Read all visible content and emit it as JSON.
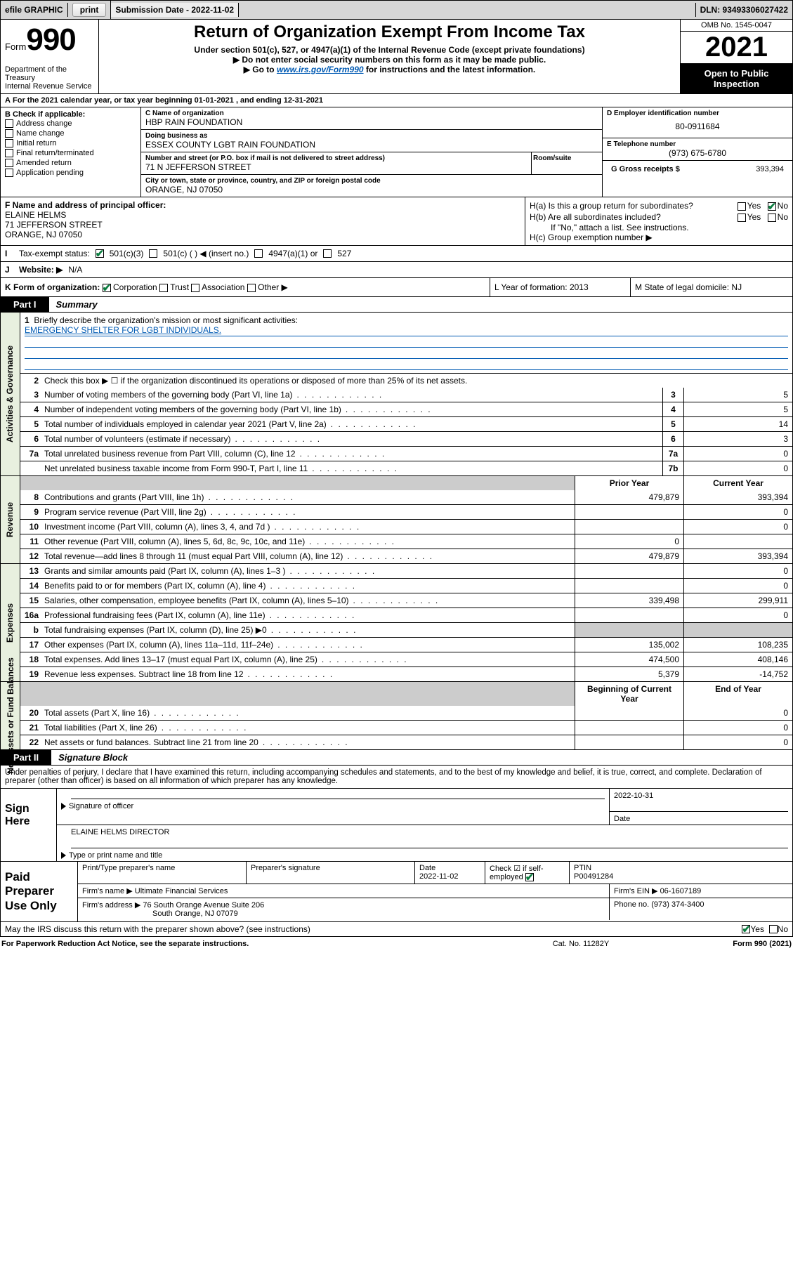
{
  "colors": {
    "topbar_bg": "#d6d6d6",
    "vtab_bg": "#e8f0df",
    "shade": "#cccccc",
    "link": "#005ab3",
    "check_green": "#0a7d3f",
    "black": "#000000"
  },
  "topbar": {
    "efile": "efile GRAPHIC",
    "print": "print",
    "sub_date_lbl": "Submission Date - 2022-11-02",
    "dln_lbl": "DLN: 93493306027422"
  },
  "header": {
    "form_word": "Form",
    "form_number": "990",
    "dept": "Department of the Treasury",
    "irs": "Internal Revenue Service",
    "title": "Return of Organization Exempt From Income Tax",
    "sub1": "Under section 501(c), 527, or 4947(a)(1) of the Internal Revenue Code (except private foundations)",
    "sub2": "▶ Do not enter social security numbers on this form as it may be made public.",
    "sub3_pre": "▶ Go to ",
    "sub3_link": "www.irs.gov/Form990",
    "sub3_post": " for instructions and the latest information.",
    "omb": "OMB No. 1545-0047",
    "year": "2021",
    "open": "Open to Public Inspection"
  },
  "A": {
    "text": "For the 2021 calendar year, or tax year beginning 01-01-2021   , and ending 12-31-2021"
  },
  "B": {
    "lbl": "B Check if applicable:",
    "opts": [
      "Address change",
      "Name change",
      "Initial return",
      "Final return/terminated",
      "Amended return",
      "Application pending"
    ]
  },
  "C": {
    "name_lbl": "C Name of organization",
    "name": "HBP RAIN FOUNDATION",
    "dba_lbl": "Doing business as",
    "dba": "ESSEX COUNTY LGBT RAIN FOUNDATION",
    "addr_lbl": "Number and street (or P.O. box if mail is not delivered to street address)",
    "room_lbl": "Room/suite",
    "addr": "71 N JEFFERSON STREET",
    "city_lbl": "City or town, state or province, country, and ZIP or foreign postal code",
    "city": "ORANGE, NJ  07050"
  },
  "D": {
    "lbl": "D Employer identification number",
    "val": "80-0911684"
  },
  "E": {
    "lbl": "E Telephone number",
    "val": "(973) 675-6780"
  },
  "G": {
    "lbl": "G Gross receipts $",
    "val": "393,394"
  },
  "F": {
    "lbl": "F Name and address of principal officer:",
    "name": "ELAINE HELMS",
    "addr1": "71 JEFFERSON STREET",
    "addr2": "ORANGE, NJ  07050"
  },
  "H": {
    "a": "H(a)  Is this a group return for subordinates?",
    "b": "H(b)  Are all subordinates included?",
    "note": "If \"No,\" attach a list. See instructions.",
    "c": "H(c)  Group exemption number ▶",
    "yes": "Yes",
    "no": "No"
  },
  "I": {
    "lbl": "Tax-exempt status:",
    "o1": "501(c)(3)",
    "o2": "501(c) (  ) ◀ (insert no.)",
    "o3": "4947(a)(1) or",
    "o4": "527"
  },
  "J": {
    "lbl": "Website: ▶",
    "val": "N/A"
  },
  "K": {
    "lbl": "K Form of organization:",
    "opts": [
      "Corporation",
      "Trust",
      "Association",
      "Other ▶"
    ],
    "L": "L Year of formation: 2013",
    "M": "M State of legal domicile: NJ"
  },
  "parts": {
    "p1": "Part I",
    "p1t": "Summary",
    "p2": "Part II",
    "p2t": "Signature Block"
  },
  "summary": {
    "s1_num": "1",
    "s1": "Briefly describe the organization's mission or most significant activities:",
    "mission": "EMERGENCY SHELTER FOR LGBT INDIVIDUALS.",
    "s2_num": "2",
    "s2": "Check this box ▶ ☐  if the organization discontinued its operations or disposed of more than 25% of its net assets.",
    "head_prior": "Prior Year",
    "head_curr": "Current Year",
    "head_beg": "Beginning of Current Year",
    "head_end": "End of Year",
    "rows_gov": [
      {
        "n": "3",
        "d": "Number of voting members of the governing body (Part VI, line 1a)",
        "box": "3",
        "v": "5"
      },
      {
        "n": "4",
        "d": "Number of independent voting members of the governing body (Part VI, line 1b)",
        "box": "4",
        "v": "5"
      },
      {
        "n": "5",
        "d": "Total number of individuals employed in calendar year 2021 (Part V, line 2a)",
        "box": "5",
        "v": "14"
      },
      {
        "n": "6",
        "d": "Total number of volunteers (estimate if necessary)",
        "box": "6",
        "v": "3"
      },
      {
        "n": "7a",
        "d": "Total unrelated business revenue from Part VIII, column (C), line 12",
        "box": "7a",
        "v": "0"
      },
      {
        "n": "",
        "d": "Net unrelated business taxable income from Form 990-T, Part I, line 11",
        "box": "7b",
        "v": "0"
      }
    ],
    "rows_rev": [
      {
        "n": "8",
        "d": "Contributions and grants (Part VIII, line 1h)",
        "p": "479,879",
        "c": "393,394"
      },
      {
        "n": "9",
        "d": "Program service revenue (Part VIII, line 2g)",
        "p": "",
        "c": "0"
      },
      {
        "n": "10",
        "d": "Investment income (Part VIII, column (A), lines 3, 4, and 7d )",
        "p": "",
        "c": "0"
      },
      {
        "n": "11",
        "d": "Other revenue (Part VIII, column (A), lines 5, 6d, 8c, 9c, 10c, and 11e)",
        "p": "0",
        "c": ""
      },
      {
        "n": "12",
        "d": "Total revenue—add lines 8 through 11 (must equal Part VIII, column (A), line 12)",
        "p": "479,879",
        "c": "393,394"
      }
    ],
    "rows_exp": [
      {
        "n": "13",
        "d": "Grants and similar amounts paid (Part IX, column (A), lines 1–3 )",
        "p": "",
        "c": "0"
      },
      {
        "n": "14",
        "d": "Benefits paid to or for members (Part IX, column (A), line 4)",
        "p": "",
        "c": "0"
      },
      {
        "n": "15",
        "d": "Salaries, other compensation, employee benefits (Part IX, column (A), lines 5–10)",
        "p": "339,498",
        "c": "299,911"
      },
      {
        "n": "16a",
        "d": "Professional fundraising fees (Part IX, column (A), line 11e)",
        "p": "",
        "c": "0"
      },
      {
        "n": "b",
        "d": "Total fundraising expenses (Part IX, column (D), line 25) ▶0",
        "p": "shade",
        "c": "shade"
      },
      {
        "n": "17",
        "d": "Other expenses (Part IX, column (A), lines 11a–11d, 11f–24e)",
        "p": "135,002",
        "c": "108,235"
      },
      {
        "n": "18",
        "d": "Total expenses. Add lines 13–17 (must equal Part IX, column (A), line 25)",
        "p": "474,500",
        "c": "408,146"
      },
      {
        "n": "19",
        "d": "Revenue less expenses. Subtract line 18 from line 12",
        "p": "5,379",
        "c": "-14,752"
      }
    ],
    "rows_net": [
      {
        "n": "20",
        "d": "Total assets (Part X, line 16)",
        "p": "",
        "c": "0"
      },
      {
        "n": "21",
        "d": "Total liabilities (Part X, line 26)",
        "p": "",
        "c": "0"
      },
      {
        "n": "22",
        "d": "Net assets or fund balances. Subtract line 21 from line 20",
        "p": "",
        "c": "0"
      }
    ],
    "vtabs": {
      "gov": "Activities & Governance",
      "rev": "Revenue",
      "exp": "Expenses",
      "net": "Net Assets or Fund Balances"
    }
  },
  "part2": {
    "decl": "Under penalties of perjury, I declare that I have examined this return, including accompanying schedules and statements, and to the best of my knowledge and belief, it is true, correct, and complete. Declaration of preparer (other than officer) is based on all information of which preparer has any knowledge."
  },
  "sign": {
    "here": "Sign Here",
    "sig_lbl": "Signature of officer",
    "date_lbl": "Date",
    "date": "2022-10-31",
    "name": "ELAINE HELMS  DIRECTOR",
    "name_lbl": "Type or print name and title"
  },
  "prep": {
    "title": "Paid Preparer Use Only",
    "h1": "Print/Type preparer's name",
    "h2": "Preparer's signature",
    "h3": "Date",
    "h3v": "2022-11-02",
    "h4": "Check ☑ if self-employed",
    "h5": "PTIN",
    "h5v": "P00491284",
    "firm_lbl": "Firm's name   ▶",
    "firm": "Ultimate Financial Services",
    "ein_lbl": "Firm's EIN ▶",
    "ein": "06-1607189",
    "addr_lbl": "Firm's address ▶",
    "addr1": "76 South Orange Avenue Suite 206",
    "addr2": "South Orange, NJ  07079",
    "ph_lbl": "Phone no.",
    "ph": "(973) 374-3400"
  },
  "may": {
    "q": "May the IRS discuss this return with the preparer shown above? (see instructions)",
    "yes": "Yes",
    "no": "No"
  },
  "footer": {
    "l": "For Paperwork Reduction Act Notice, see the separate instructions.",
    "m": "Cat. No. 11282Y",
    "r": "Form 990 (2021)"
  }
}
